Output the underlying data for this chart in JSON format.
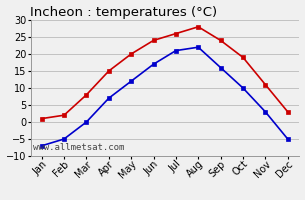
{
  "title": "Incheon : temperatures (°C)",
  "months": [
    "Jan",
    "Feb",
    "Mar",
    "Apr",
    "May",
    "Jun",
    "Jul",
    "Aug",
    "Sep",
    "Oct",
    "Nov",
    "Dec"
  ],
  "max_temps": [
    1,
    2,
    8,
    15,
    20,
    24,
    26,
    28,
    24,
    19,
    11,
    3
  ],
  "min_temps": [
    -7,
    -5,
    0,
    7,
    12,
    17,
    21,
    22,
    16,
    10,
    3,
    -5
  ],
  "max_color": "#cc0000",
  "min_color": "#0000cc",
  "ylim": [
    -10,
    30
  ],
  "background_color": "#f0f0f0",
  "grid_color": "#bbbbbb",
  "watermark": "www.allmetsat.com",
  "title_fontsize": 9.5,
  "tick_fontsize": 7,
  "watermark_fontsize": 6.5,
  "line_width": 1.2,
  "marker_size": 3.0
}
